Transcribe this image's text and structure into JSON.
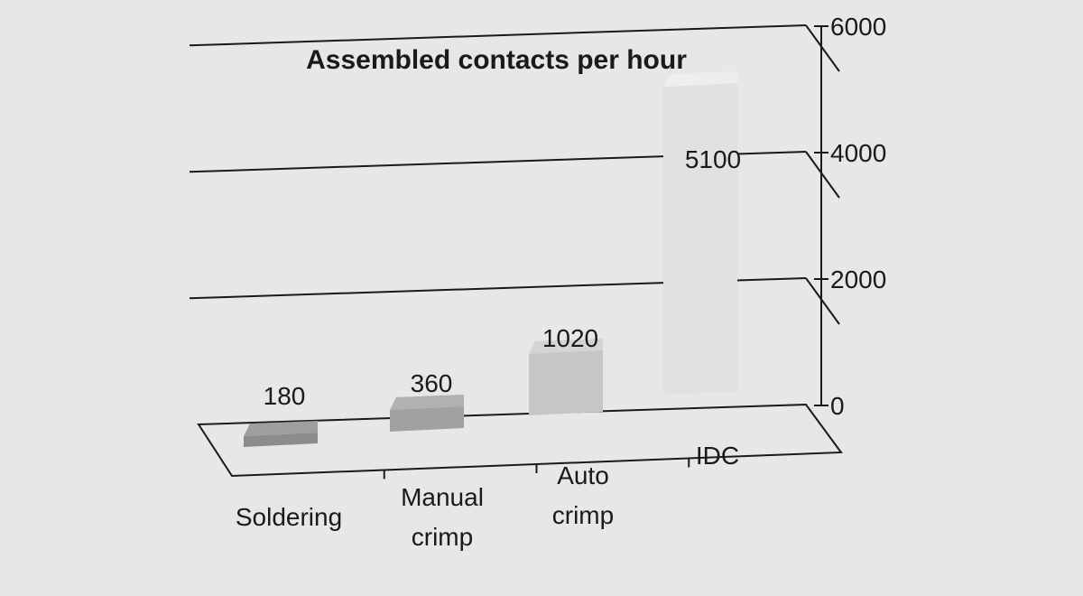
{
  "chart_data": {
    "type": "bar",
    "title": "Assembled contacts per hour",
    "categories": [
      {
        "label_lines": [
          "Soldering"
        ]
      },
      {
        "label_lines": [
          "Manual",
          "crimp"
        ]
      },
      {
        "label_lines": [
          "Auto",
          "crimp"
        ]
      },
      {
        "label_lines": [
          "IDC"
        ]
      }
    ],
    "values": [
      180,
      360,
      1020,
      5100
    ],
    "data_labels": [
      "180",
      "360",
      "1020",
      "5100"
    ],
    "yticks": [
      0,
      2000,
      4000,
      6000
    ],
    "ytick_labels": [
      "0",
      "2000",
      "4000",
      "6000"
    ],
    "ylim": [
      0,
      6000
    ],
    "xlabel": "",
    "ylabel": "",
    "style": "3d-column",
    "grid": true,
    "legend": "none",
    "colors": {
      "bar_front": [
        "#8b8c8e",
        "#a0a1a3",
        "#c5c6c8",
        "#e0e1e2"
      ],
      "bar_top": [
        "#9d9ea0",
        "#b0b1b3",
        "#d3d4d6",
        "#eeeeef"
      ],
      "bar_side": [
        "#6f7072",
        "#858688",
        "#aeafb1",
        "#c8c9cb"
      ],
      "axis": "#1a1a1a",
      "background": "#e6e7e8"
    }
  }
}
